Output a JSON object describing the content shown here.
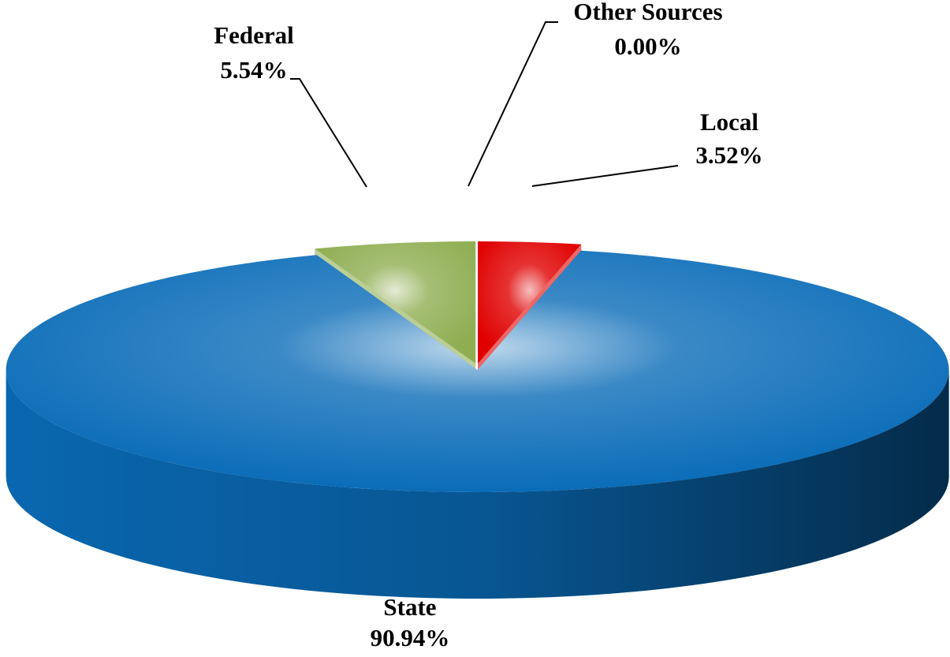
{
  "chart_data": {
    "type": "pie",
    "categories": [
      "Local",
      "State",
      "Federal",
      "Other Sources"
    ],
    "values": [
      3.52,
      90.94,
      5.54,
      0.0
    ],
    "value_labels": [
      "3.52%",
      "90.94%",
      "5.54%",
      "0.00%"
    ],
    "colors": [
      "#e00000",
      "#0a6cb8",
      "#8fae52",
      "#ffffff"
    ]
  }
}
